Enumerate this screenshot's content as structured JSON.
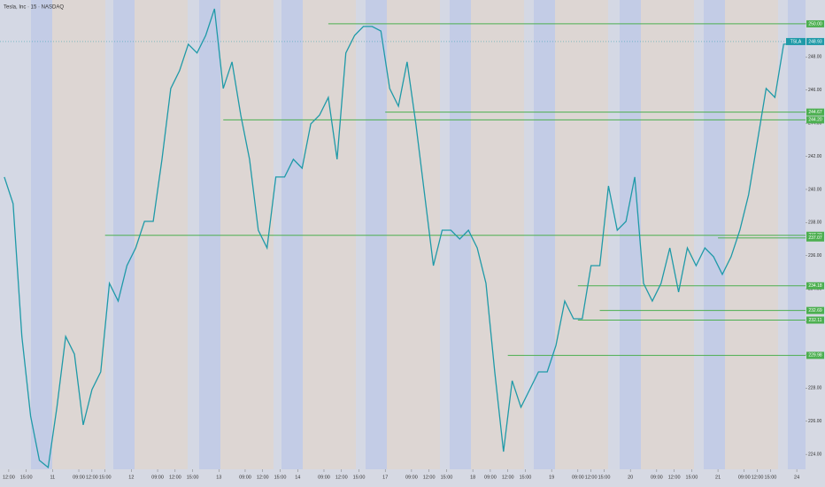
{
  "chart_data": {
    "type": "line",
    "title": "Tesla, Inc · 15 · NASDAQ",
    "symbol": "TSLA",
    "last_price": 248.93,
    "ylim": [
      223.1,
      251.44
    ],
    "yticks": [
      {
        "value": 224,
        "label": "224.00"
      },
      {
        "value": 226,
        "label": "226.00"
      },
      {
        "value": 228,
        "label": "228.00"
      },
      {
        "value": 230,
        "label": "230.00"
      },
      {
        "value": 232,
        "label": "232.00"
      },
      {
        "value": 234,
        "label": "234.00"
      },
      {
        "value": 236,
        "label": "236.00"
      },
      {
        "value": 238,
        "label": "238.00"
      },
      {
        "value": 240,
        "label": "240.00"
      },
      {
        "value": 242,
        "label": "242.00"
      },
      {
        "value": 244,
        "label": "244.00"
      },
      {
        "value": 246,
        "label": "246.00"
      },
      {
        "value": 248,
        "label": "248.00"
      },
      {
        "value": 250,
        "label": "250.00"
      }
    ],
    "xlim": [
      0,
      92
    ],
    "xticks": [
      {
        "value": 1,
        "label": "12:00"
      },
      {
        "value": 3,
        "label": "15:00"
      },
      {
        "value": 6,
        "label": "11"
      },
      {
        "value": 9,
        "label": "09:00"
      },
      {
        "value": 10.5,
        "label": "12:00"
      },
      {
        "value": 12,
        "label": "15:00"
      },
      {
        "value": 15,
        "label": "12"
      },
      {
        "value": 18,
        "label": "09:00"
      },
      {
        "value": 20,
        "label": "12:00"
      },
      {
        "value": 22,
        "label": "15:00"
      },
      {
        "value": 25,
        "label": "13"
      },
      {
        "value": 28,
        "label": "09:00"
      },
      {
        "value": 30,
        "label": "12:00"
      },
      {
        "value": 32,
        "label": "15:00"
      },
      {
        "value": 34,
        "label": "14"
      },
      {
        "value": 37,
        "label": "09:00"
      },
      {
        "value": 39,
        "label": "12:00"
      },
      {
        "value": 41,
        "label": "15:00"
      },
      {
        "value": 44,
        "label": "17"
      },
      {
        "value": 47,
        "label": "09:00"
      },
      {
        "value": 49,
        "label": "12:00"
      },
      {
        "value": 51,
        "label": "15:00"
      },
      {
        "value": 54,
        "label": "18"
      },
      {
        "value": 56,
        "label": "09:00"
      },
      {
        "value": 58,
        "label": "12:00"
      },
      {
        "value": 60,
        "label": "15:00"
      },
      {
        "value": 63,
        "label": "19"
      },
      {
        "value": 66,
        "label": "09:00"
      },
      {
        "value": 67.5,
        "label": "12:00"
      },
      {
        "value": 69,
        "label": "15:00"
      },
      {
        "value": 72,
        "label": "20"
      },
      {
        "value": 75,
        "label": "09:00"
      },
      {
        "value": 77,
        "label": "12:00"
      },
      {
        "value": 79,
        "label": "15:00"
      },
      {
        "value": 82,
        "label": "21"
      },
      {
        "value": 85,
        "label": "09:00"
      },
      {
        "value": 86.5,
        "label": "12:00"
      },
      {
        "value": 88,
        "label": "15:00"
      },
      {
        "value": 91,
        "label": "24"
      }
    ],
    "series": [
      {
        "name": "TSLA",
        "color": "#1f9aa8",
        "values": [
          240.75,
          239.14,
          231.12,
          226.31,
          223.64,
          223.21,
          226.85,
          231.12,
          230.05,
          225.78,
          227.91,
          228.98,
          234.33,
          233.26,
          235.4,
          236.47,
          238.07,
          238.07,
          241.82,
          246.1,
          247.17,
          248.77,
          248.24,
          249.3,
          250.91,
          246.1,
          247.7,
          244.49,
          241.82,
          237.54,
          236.47,
          240.75,
          240.75,
          241.82,
          241.28,
          243.96,
          244.49,
          245.56,
          241.82,
          248.24,
          249.3,
          249.84,
          249.84,
          249.57,
          246.1,
          245.03,
          247.7,
          243.96,
          239.68,
          235.4,
          237.54,
          237.54,
          237.01,
          237.54,
          236.47,
          234.33,
          228.98,
          224.17,
          228.45,
          226.85,
          227.91,
          228.98,
          228.98,
          230.59,
          233.26,
          232.19,
          232.19,
          235.4,
          235.4,
          240.21,
          237.54,
          238.07,
          240.75,
          234.33,
          233.26,
          234.33,
          236.47,
          233.8,
          236.47,
          235.4,
          236.47,
          235.94,
          234.87,
          235.94,
          237.54,
          239.68,
          242.89,
          246.1,
          245.56,
          248.77,
          248.77,
          249.04
        ]
      }
    ],
    "levels": [
      {
        "value": 250.0,
        "start": 37.5
      },
      {
        "value": 244.67,
        "start": 44
      },
      {
        "value": 244.2,
        "start": 25.5
      },
      {
        "value": 237.23,
        "start": 12
      },
      {
        "value": 237.07,
        "start": 82
      },
      {
        "value": 234.18,
        "start": 66
      },
      {
        "value": 232.69,
        "start": 68.5
      },
      {
        "value": 232.11,
        "start": 66
      },
      {
        "value": 229.98,
        "start": 58
      }
    ],
    "level_labels": [
      "250.00",
      "244.67",
      "244.20",
      "237.23",
      "237.07",
      "234.18",
      "232.69",
      "232.11",
      "229.98"
    ],
    "level_color": "#4caf50",
    "grid": false
  }
}
